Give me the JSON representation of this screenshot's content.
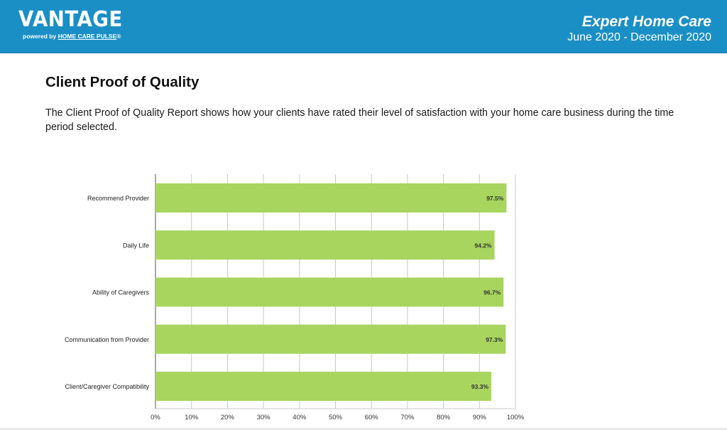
{
  "header": {
    "logo_text": "VANTAGE",
    "logo_powered": "powered by",
    "logo_brand": "HOME CARE PULSE",
    "logo_reg": "®",
    "company": "Expert Home Care",
    "period": "June 2020 - December 2020"
  },
  "page": {
    "title": "Client Proof of Quality",
    "description": "The Client Proof of Quality Report shows how your clients have rated their level of satisfaction with your home care business during the time period selected."
  },
  "colors": {
    "header_bg": "#1a8fc6",
    "bar": "#a8d55e",
    "grid": "#c8c8c8"
  },
  "chart_data": {
    "type": "bar",
    "orientation": "horizontal",
    "categories": [
      "Recommend Provider",
      "Daily Life",
      "Ability of Caregivers",
      "Communication from Provider",
      "Client/Caregiver Compatibility"
    ],
    "values": [
      97.5,
      94.2,
      96.7,
      97.3,
      93.3
    ],
    "value_labels": [
      "97.5%",
      "94.2%",
      "96.7%",
      "97.3%",
      "93.3%"
    ],
    "x_ticks": [
      "0%",
      "10%",
      "20%",
      "30%",
      "40%",
      "50%",
      "60%",
      "70%",
      "80%",
      "90%",
      "100%"
    ],
    "xlim": [
      0,
      100
    ],
    "grid": true
  }
}
